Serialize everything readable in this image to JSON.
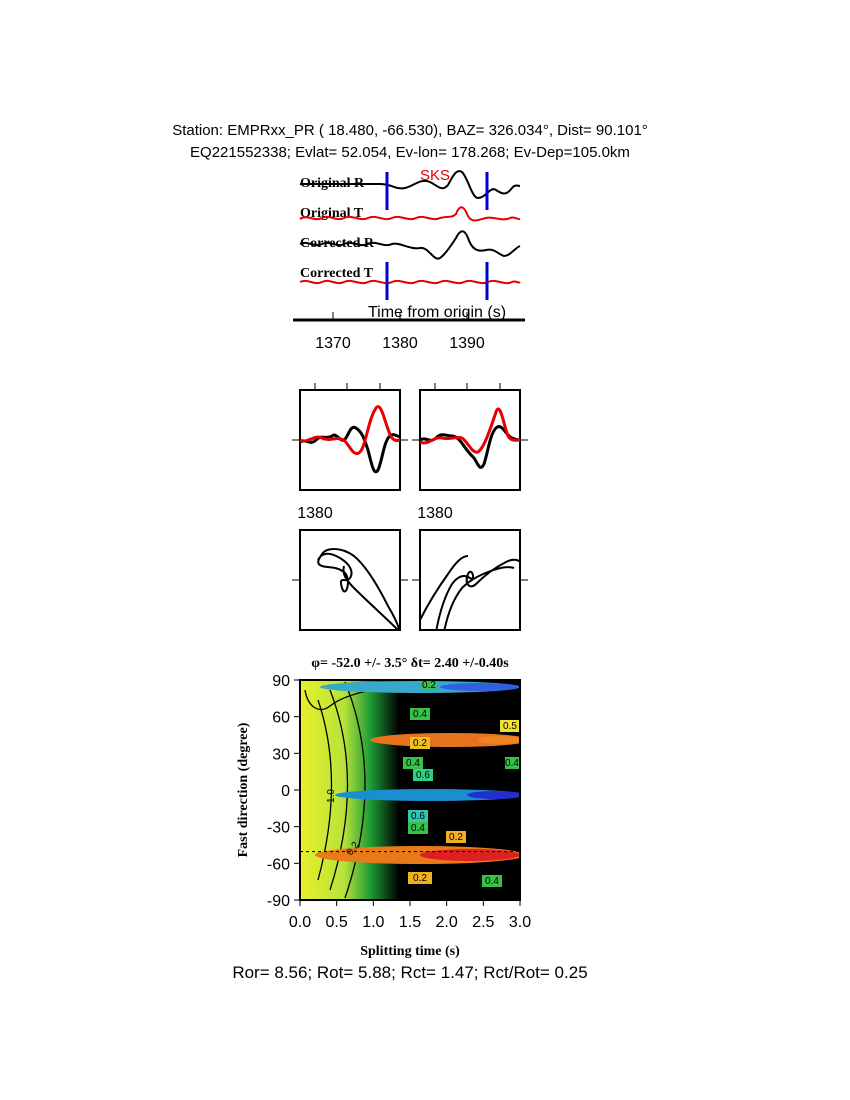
{
  "header": {
    "line1": "Station: EMPRxx_PR (  18.480,  -66.530), BAZ=  326.034°, Dist=   90.101°",
    "line2": "EQ221552338; Evlat=  52.054, Ev-lon= 178.268; Ev-Dep=105.0km"
  },
  "traces": {
    "labels": [
      "Original R",
      "Original T",
      "Corrected R",
      "Corrected T"
    ],
    "phase": "SKS",
    "axis_title": "Time from origin (s)",
    "ticks": [
      "1370",
      "1380",
      "1390"
    ]
  },
  "particle": {
    "tick_left": "1380",
    "tick_right": "1380"
  },
  "grid": {
    "title": "φ= -52.0 +/- 3.5° δt= 2.40 +/-0.40s",
    "xlabel": "Splitting time (s)",
    "ylabel": "Fast direction (degree)",
    "contour_labels": [
      "0.4",
      "0.5",
      "0.2",
      "0.4",
      "0.6",
      "0.4",
      "0.6",
      "0.4",
      "0.2",
      "0.2",
      "0.4",
      "0.2",
      "1.0",
      "0.2"
    ]
  },
  "footer": "Ror= 8.56; Rot= 5.88; Rct= 1.47; Rct/Rot= 0.25",
  "chart_data": [
    {
      "type": "line",
      "title": "",
      "xlabel": "Time from origin (s)",
      "ylabel": "",
      "x_ticks": [
        1370,
        1380,
        1390
      ],
      "series": [
        {
          "name": "Original R",
          "color": "#000000"
        },
        {
          "name": "Original T",
          "color": "#e60000"
        },
        {
          "name": "Corrected R",
          "color": "#000000"
        },
        {
          "name": "Corrected T",
          "color": "#e60000"
        }
      ],
      "window_markers_s": [
        1378,
        1393
      ],
      "marker_color": "#0000cc"
    },
    {
      "type": "heatmap",
      "title": "φ= -52.0 +/- 3.5° δt= 2.40 +/-0.40s",
      "xlabel": "Splitting time (s)",
      "ylabel": "Fast direction (degree)",
      "xlim": [
        0.0,
        3.0
      ],
      "ylim": [
        -90,
        90
      ],
      "x_ticks": [
        0.0,
        0.5,
        1.0,
        1.5,
        2.0,
        2.5,
        3.0
      ],
      "y_ticks": [
        90,
        60,
        30,
        0,
        -30,
        -60,
        -90
      ],
      "best_phi_deg": -52.0,
      "phi_error_deg": 3.5,
      "best_dt_s": 2.4,
      "dt_error_s": 0.4
    }
  ]
}
